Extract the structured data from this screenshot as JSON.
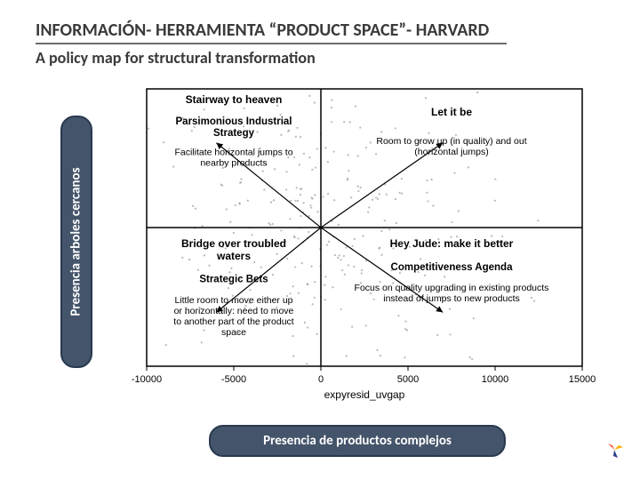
{
  "title": {
    "text": "INFORMACIÓN- HERRAMIENTA “PRODUCT SPACE”- HARVARD",
    "fontsize": 20,
    "color": "#3a3a3a"
  },
  "subtitle": {
    "text": "A policy map for structural transformation",
    "fontsize": 18,
    "color": "#3a3a3a"
  },
  "axis_labels": {
    "y_rotated": "Presencia arboles cercanos",
    "x_bottom": "Presencia de productos complejos",
    "box_bg": "#44546a",
    "box_border": "#29394f",
    "text_color": "#ffffff",
    "fontsize": 15
  },
  "chart": {
    "type": "quadrant-scatter",
    "background": "#ffffff",
    "plot_border_color": "#000000",
    "xlim": [
      -10000,
      15000
    ],
    "ylim": [
      -0.09,
      0.09
    ],
    "xticks": [
      -10000,
      -5000,
      0,
      5000,
      10000,
      15000
    ],
    "x_axis_title": "expyresid_uvgap",
    "tick_fontsize": 11,
    "divider_color": "#000000",
    "arrows": {
      "color": "#000000",
      "width": 1.2,
      "count": 4,
      "from_center": true,
      "targets": [
        [
          -6000,
          0.055
        ],
        [
          7000,
          0.055
        ],
        [
          -6000,
          -0.055
        ],
        [
          7000,
          -0.055
        ]
      ]
    },
    "data_hint": {
      "type": "scatter-dense",
      "color": "#7f7f7f",
      "opacity": 0.55,
      "size": 1.1,
      "approx_count": 320,
      "center": [
        0,
        0
      ],
      "spread_x": 5000,
      "spread_y": 0.05
    },
    "quadrants": {
      "top_left": {
        "heading": "Stairway to heaven",
        "sub_bold": "Parsimonious Industrial Strategy",
        "body": "Facilitate horizontal jumps to nearby products"
      },
      "top_right": {
        "heading": "Let it be",
        "body": "Room to grow up (in quality) and out (horizontal jumps)"
      },
      "bottom_left": {
        "heading": "Bridge over troubled waters",
        "sub_bold": "Strategic Bets",
        "body": "Little room to move either up or horizontally: need to move to another part of the product space"
      },
      "bottom_right": {
        "heading": "Hey Jude: make it better",
        "sub_bold": "Competitiveness Agenda",
        "body": "Focus on quality upgrading in existing products instead of jumps to new products"
      }
    },
    "text_fontsize_heading": 12,
    "text_fontsize_body": 10.5
  },
  "logo": {
    "colors": [
      "#ff5a3c",
      "#ffb000",
      "#2b3d8c"
    ]
  }
}
